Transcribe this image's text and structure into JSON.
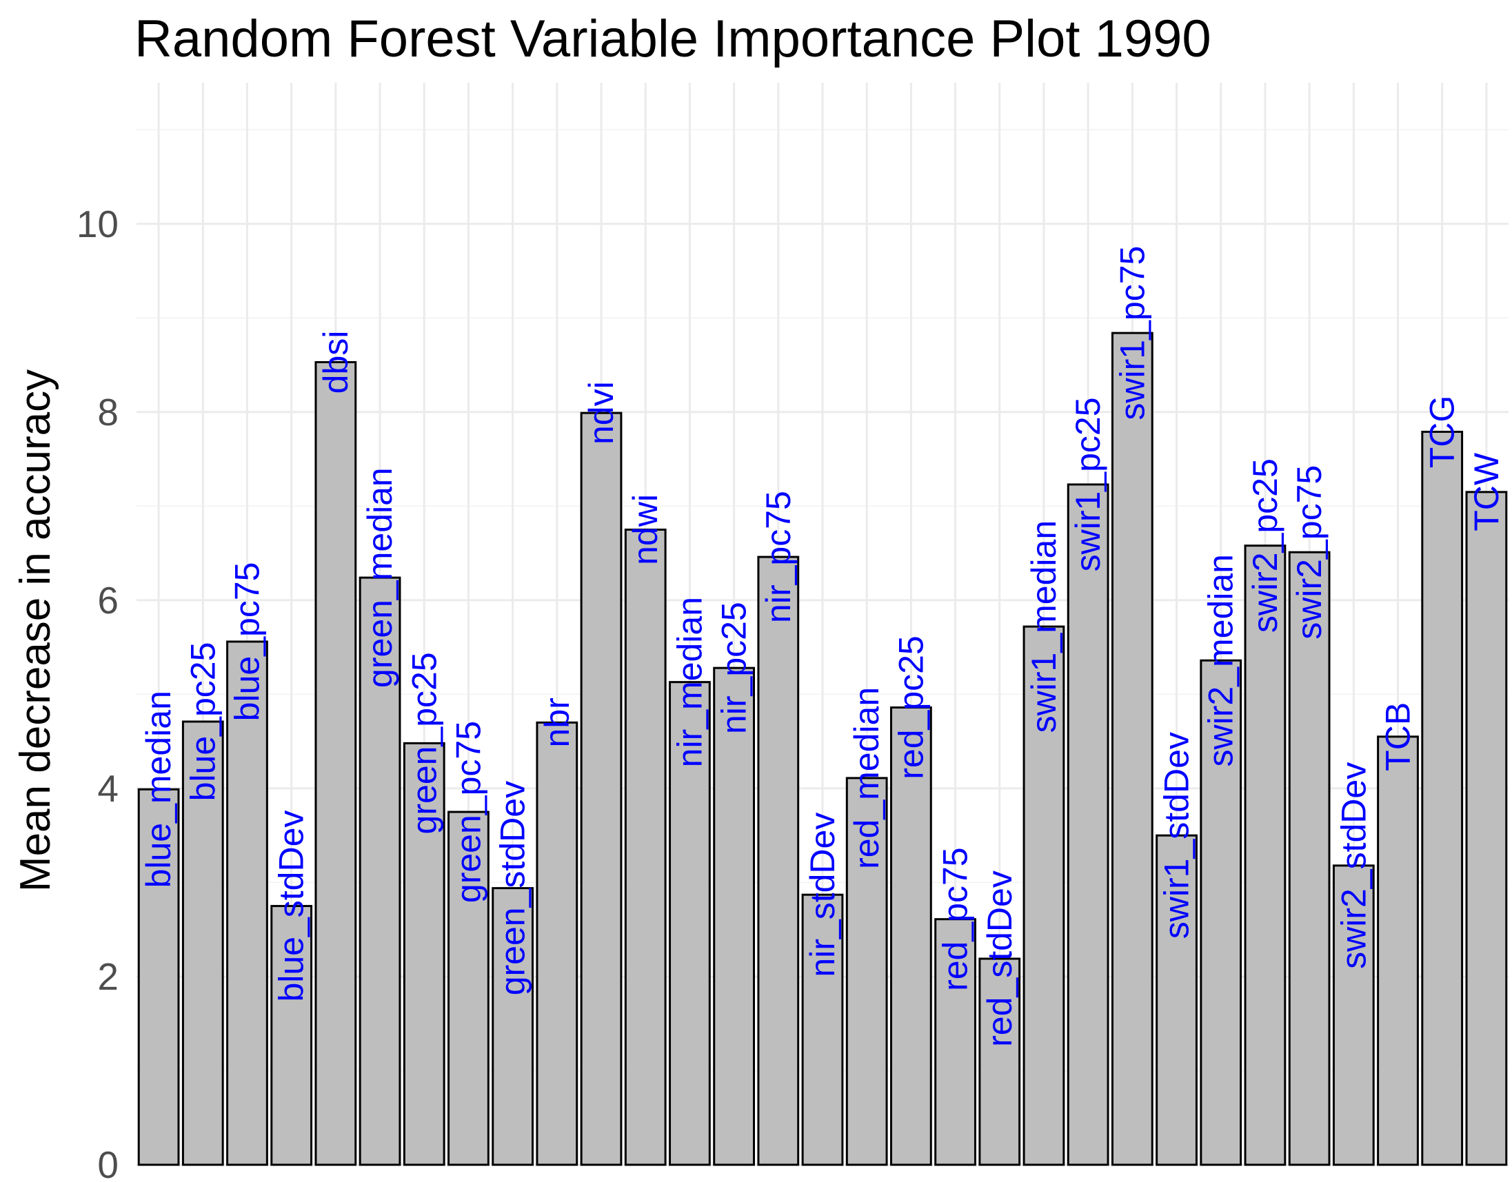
{
  "chart_data": {
    "type": "bar",
    "title": "Random Forest Variable Importance Plot 1990",
    "xlabel": "",
    "ylabel": "Mean decrease in accuracy",
    "ylim": [
      0,
      11.5
    ],
    "yticks": [
      0,
      2,
      4,
      6,
      8,
      10
    ],
    "grid": true,
    "bar_fill": "#bebebe",
    "bar_stroke": "#000000",
    "label_color": "#0000ff",
    "categories": [
      "blue_median",
      "blue_pc25",
      "blue_pc75",
      "blue_stdDev",
      "dbsi",
      "green_median",
      "green_pc25",
      "green_pc75",
      "green_stdDev",
      "nbr",
      "ndvi",
      "ndwi",
      "nir_median",
      "nir_pc25",
      "nir_pc75",
      "nir_stdDev",
      "red_median",
      "red_pc25",
      "red_pc75",
      "red_stdDev",
      "swir1_median",
      "swir1_pc25",
      "swir1_pc75",
      "swir1_stdDev",
      "swir2_median",
      "swir2_pc25",
      "swir2_pc75",
      "swir2_stdDev",
      "TCB",
      "TCG",
      "TCW"
    ],
    "values": [
      3.99,
      4.71,
      5.56,
      2.75,
      8.53,
      6.24,
      4.48,
      3.75,
      2.94,
      4.7,
      7.99,
      6.75,
      5.13,
      5.28,
      6.46,
      2.87,
      4.11,
      4.86,
      2.61,
      2.19,
      5.72,
      7.23,
      8.84,
      3.5,
      5.36,
      6.58,
      6.51,
      3.18,
      4.55,
      7.79,
      7.15
    ]
  }
}
